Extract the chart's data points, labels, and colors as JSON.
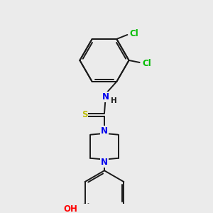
{
  "background_color": "#ebebeb",
  "bond_color": "#1a1a1a",
  "figsize": [
    3.0,
    3.0
  ],
  "dpi": 100,
  "atom_colors": {
    "N": "#0000ee",
    "S": "#bbbb00",
    "O": "#ff0000",
    "Cl": "#00bb00",
    "C": "#1a1a1a",
    "H": "#1a1a1a"
  },
  "font_size": 8.5,
  "font_size_h": 7.5
}
